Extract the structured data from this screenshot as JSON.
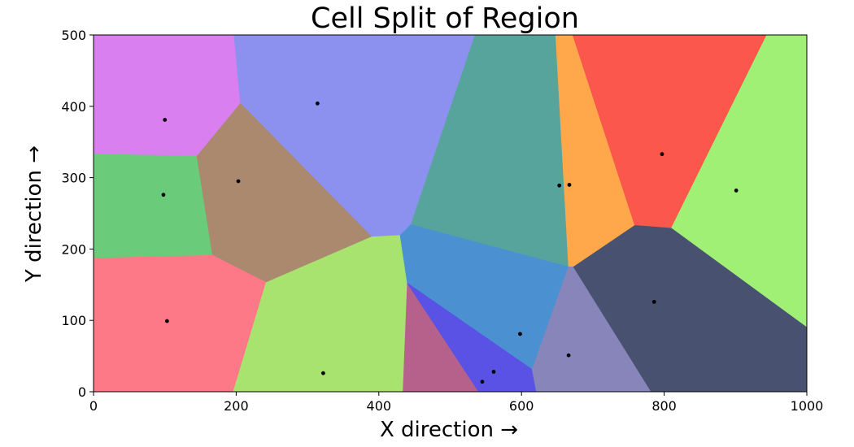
{
  "chart_data": {
    "type": "voronoi",
    "title": "Cell Split of Region",
    "xlabel": "X direction →",
    "ylabel": "Y direction →",
    "xlim": [
      0,
      1000
    ],
    "ylim": [
      0,
      500
    ],
    "xticks": [
      0,
      200,
      400,
      600,
      800,
      1000
    ],
    "yticks": [
      0,
      100,
      200,
      300,
      400,
      500
    ],
    "grid": false,
    "points": [
      {
        "x": 100,
        "y": 381
      },
      {
        "x": 98,
        "y": 276
      },
      {
        "x": 103,
        "y": 99
      },
      {
        "x": 203,
        "y": 295
      },
      {
        "x": 314,
        "y": 404
      },
      {
        "x": 322,
        "y": 26
      },
      {
        "x": 545,
        "y": 14
      },
      {
        "x": 561,
        "y": 28
      },
      {
        "x": 598,
        "y": 81
      },
      {
        "x": 653,
        "y": 289
      },
      {
        "x": 667,
        "y": 290
      },
      {
        "x": 666,
        "y": 51
      },
      {
        "x": 786,
        "y": 126
      },
      {
        "x": 797,
        "y": 333
      },
      {
        "x": 901,
        "y": 282
      }
    ],
    "cells": [
      {
        "color": "#d97fef",
        "polygon": [
          [
            0,
            500
          ],
          [
            197,
            500
          ],
          [
            206,
            404
          ],
          [
            145,
            330
          ],
          [
            0,
            333
          ]
        ]
      },
      {
        "color": "#8c91ef",
        "polygon": [
          [
            197,
            500
          ],
          [
            535,
            500
          ],
          [
            445,
            234
          ],
          [
            430,
            219
          ],
          [
            390,
            217
          ],
          [
            206,
            404
          ]
        ]
      },
      {
        "color": "#57a49d",
        "polygon": [
          [
            535,
            500
          ],
          [
            648,
            500
          ],
          [
            666,
            175
          ],
          [
            445,
            234
          ]
        ]
      },
      {
        "color": "#ffa74b",
        "polygon": [
          [
            648,
            500
          ],
          [
            672,
            500
          ],
          [
            759,
            233
          ],
          [
            673,
            175
          ],
          [
            666,
            175
          ]
        ]
      },
      {
        "color": "#fb574c",
        "polygon": [
          [
            672,
            500
          ],
          [
            944,
            500
          ],
          [
            810,
            229
          ],
          [
            759,
            233
          ]
        ]
      },
      {
        "color": "#a1f076",
        "polygon": [
          [
            944,
            500
          ],
          [
            1000,
            500
          ],
          [
            1000,
            90
          ],
          [
            810,
            229
          ]
        ]
      },
      {
        "color": "#6acb7a",
        "polygon": [
          [
            0,
            333
          ],
          [
            145,
            330
          ],
          [
            167,
            191
          ],
          [
            0,
            187
          ]
        ]
      },
      {
        "color": "#aa896f",
        "polygon": [
          [
            145,
            330
          ],
          [
            206,
            404
          ],
          [
            390,
            217
          ],
          [
            242,
            153
          ],
          [
            167,
            191
          ]
        ]
      },
      {
        "color": "#fe7987",
        "polygon": [
          [
            0,
            187
          ],
          [
            167,
            191
          ],
          [
            242,
            153
          ],
          [
            196,
            0
          ],
          [
            0,
            0
          ]
        ]
      },
      {
        "color": "#a8e26f",
        "polygon": [
          [
            242,
            153
          ],
          [
            390,
            217
          ],
          [
            430,
            219
          ],
          [
            440,
            152
          ],
          [
            434,
            0
          ],
          [
            196,
            0
          ]
        ]
      },
      {
        "color": "#4b91d1",
        "polygon": [
          [
            430,
            219
          ],
          [
            445,
            234
          ],
          [
            666,
            175
          ],
          [
            615,
            31
          ],
          [
            440,
            152
          ]
        ]
      },
      {
        "color": "#b6618c",
        "polygon": [
          [
            440,
            152
          ],
          [
            434,
            0
          ],
          [
            540,
            0
          ]
        ]
      },
      {
        "color": "#5a52e5",
        "polygon": [
          [
            440,
            152
          ],
          [
            540,
            0
          ],
          [
            621,
            0
          ],
          [
            615,
            31
          ]
        ]
      },
      {
        "color": "#8885bb",
        "polygon": [
          [
            615,
            31
          ],
          [
            621,
            0
          ],
          [
            782,
            0
          ],
          [
            673,
            175
          ],
          [
            666,
            175
          ]
        ]
      },
      {
        "color": "#485270",
        "polygon": [
          [
            673,
            175
          ],
          [
            759,
            233
          ],
          [
            810,
            229
          ],
          [
            1000,
            90
          ],
          [
            1000,
            0
          ],
          [
            782,
            0
          ]
        ]
      }
    ]
  }
}
